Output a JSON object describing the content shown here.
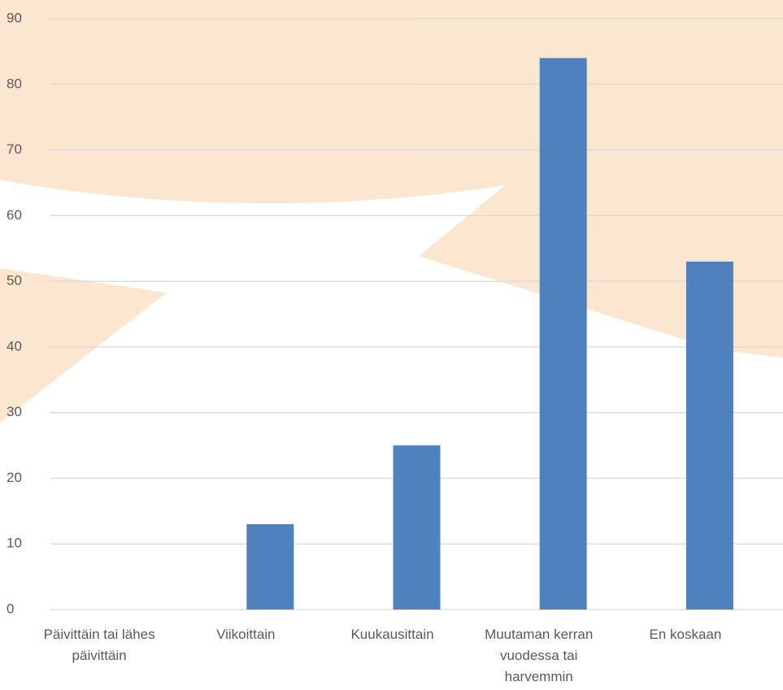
{
  "chart_data": {
    "type": "bar",
    "categories": [
      "Päivittäin tai lähes päivittäin",
      "Viikoittain",
      "Kuukausittain",
      "Muutaman kerran vuodessa tai harvemmin",
      "En koskaan"
    ],
    "values": [
      0,
      13,
      25,
      84,
      53
    ],
    "color": "#4f81bd",
    "ylim": [
      0,
      90
    ],
    "yticks": [
      0,
      10,
      20,
      30,
      40,
      50,
      60,
      70,
      80,
      90
    ],
    "grid": true
  }
}
